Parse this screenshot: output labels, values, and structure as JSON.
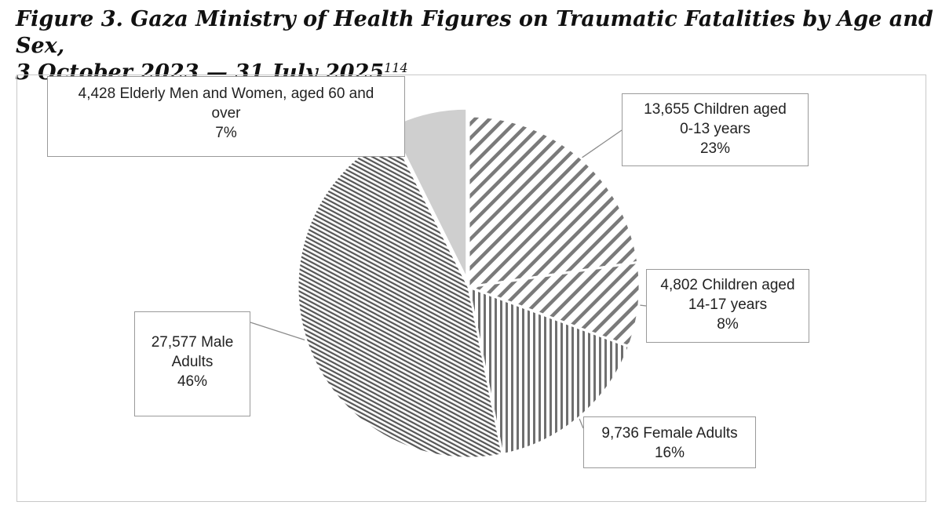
{
  "header": {
    "title_line1": "Figure 3.  Gaza Ministry of Health Figures on Traumatic Fatalities by Age and Sex,",
    "title_line2": "3 October 2023 — 31 July 2025",
    "title_footnote": "114"
  },
  "chart_data": {
    "type": "pie",
    "title": "Gaza Ministry of Health Figures on Traumatic Fatalities by Age and Sex, 3 October 2023 — 31 July 2025",
    "units": "fatalities",
    "slices": [
      {
        "label": "Children aged 0-13 years",
        "value": 13655,
        "percent": 23,
        "value_text": "13,655",
        "line1": "13,655 Children aged",
        "line2": "0-13 years",
        "pct_text": "23%",
        "pattern": "wide-diagonal",
        "color": "#6e6e6e"
      },
      {
        "label": "Children aged 14-17 years",
        "value": 4802,
        "percent": 8,
        "value_text": "4,802",
        "line1": "4,802 Children aged",
        "line2": "14-17 years",
        "pct_text": "8%",
        "pattern": "wide-diagonal",
        "color": "#7a7a7a"
      },
      {
        "label": "Female Adults",
        "value": 9736,
        "percent": 16,
        "value_text": "9,736",
        "line1": "9,736 Female Adults",
        "line2": "",
        "pct_text": "16%",
        "pattern": "vertical",
        "color": "#707070"
      },
      {
        "label": "Male Adults",
        "value": 27577,
        "percent": 46,
        "value_text": "27,577",
        "line1": "27,577 Male",
        "line2": "Adults",
        "pct_text": "46%",
        "pattern": "dense-diagonal",
        "color": "#505050"
      },
      {
        "label": "Elderly Men and Women, aged 60 and over",
        "value": 4428,
        "percent": 7,
        "value_text": "4,428",
        "line1": "4,428 Elderly Men and Women, aged 60 and",
        "line2": "over",
        "pct_text": "7%",
        "pattern": "solid",
        "color": "#cfcfcf"
      }
    ]
  }
}
